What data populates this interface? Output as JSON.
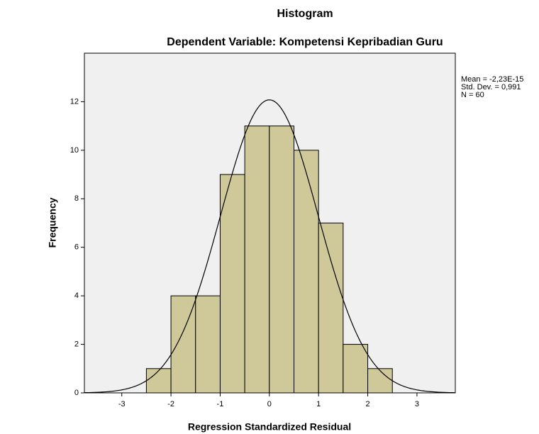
{
  "chart_data": {
    "type": "histogram",
    "title": "Histogram",
    "subtitle": "Dependent Variable: Kompetensi Kepribadian Guru",
    "x_label": "Regression Standardized Residual",
    "y_label": "Frequency",
    "bins": [
      -2.5,
      -2,
      -1.5,
      -1,
      -0.5,
      0,
      0.5,
      1,
      1.5,
      2,
      2.5
    ],
    "values": [
      1,
      4,
      4,
      9,
      11,
      11,
      10,
      7,
      2,
      1
    ],
    "color": "#cfc99a",
    "xlim": [
      -3.76,
      3.78
    ],
    "xticks": [
      -3,
      -2,
      -1,
      0,
      1,
      2,
      3
    ],
    "ylim": [
      0,
      14
    ],
    "yticks": [
      0,
      2,
      4,
      6,
      8,
      10,
      12
    ],
    "grid": false,
    "stats": {
      "mean": -2.23e-15,
      "std_dev": 0.991,
      "n": 60
    },
    "stats_labels": [
      "Mean = -2,23E-15",
      "Std. Dev. = 0,991",
      "N = 60"
    ]
  }
}
